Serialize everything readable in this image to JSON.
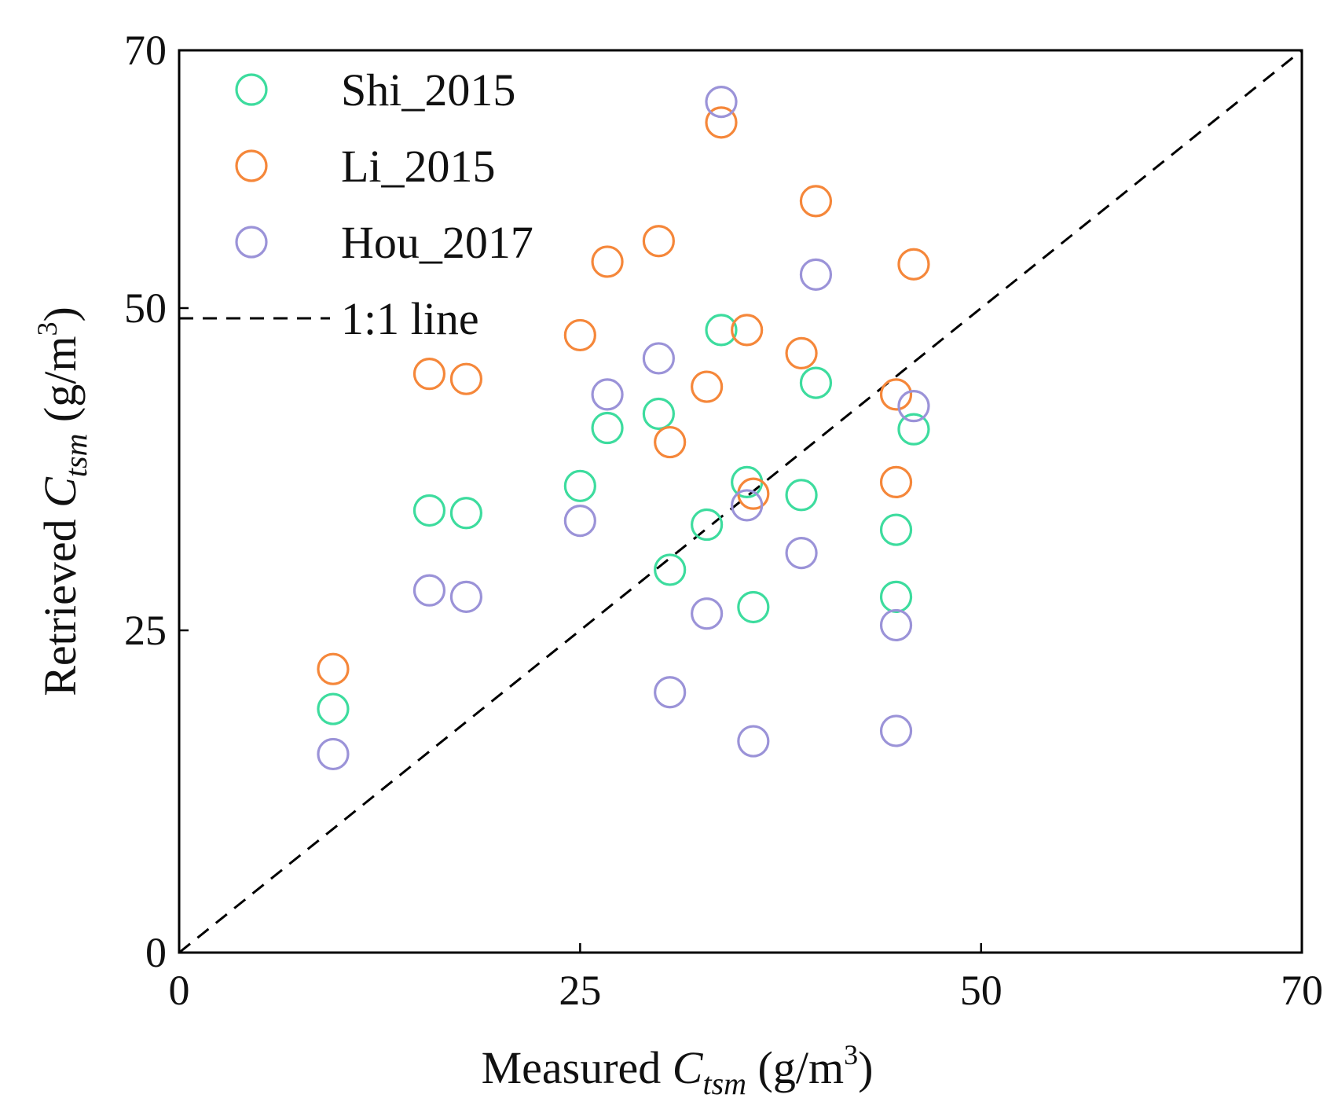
{
  "chart_data": {
    "type": "scatter",
    "title": "",
    "xlabel": {
      "prefix": "Measured ",
      "var": "C",
      "sub": "tsm",
      "unit_open": " (g/m",
      "unit_sup": "3",
      "unit_close": ")"
    },
    "ylabel": {
      "prefix": "Retrieved ",
      "var": "C",
      "sub": "tsm",
      "unit_open": " (g/m",
      "unit_sup": "3",
      "unit_close": ")"
    },
    "xlim": [
      0,
      70
    ],
    "ylim": [
      0,
      70
    ],
    "xticks": [
      0,
      25,
      50,
      70
    ],
    "yticks": [
      0,
      25,
      50,
      70
    ],
    "grid": false,
    "legend_position": "top-left",
    "series": [
      {
        "name": "Shi_2015",
        "color": "#3ddc9e",
        "x": [
          9.6,
          15.6,
          17.9,
          25.0,
          26.7,
          29.9,
          30.6,
          32.9,
          33.8,
          35.4,
          35.8,
          38.8,
          39.7,
          44.7,
          44.7,
          45.8
        ],
        "y": [
          18.9,
          34.3,
          34.1,
          36.2,
          40.7,
          41.8,
          29.7,
          33.2,
          48.3,
          36.5,
          26.8,
          35.5,
          44.2,
          32.8,
          27.6,
          40.6
        ]
      },
      {
        "name": "Li_2015",
        "color": "#f5873a",
        "x": [
          9.6,
          15.6,
          17.9,
          25.0,
          26.7,
          29.9,
          30.6,
          32.9,
          33.8,
          35.4,
          35.8,
          38.8,
          39.7,
          44.7,
          44.7,
          45.8
        ],
        "y": [
          22.0,
          44.9,
          44.5,
          47.9,
          53.6,
          55.2,
          39.6,
          43.9,
          64.4,
          48.3,
          35.6,
          46.5,
          58.3,
          43.3,
          36.5,
          53.4
        ]
      },
      {
        "name": "Hou_2017",
        "color": "#9b93d8",
        "x": [
          9.6,
          15.6,
          17.9,
          25.0,
          26.7,
          29.9,
          30.6,
          32.9,
          33.8,
          35.4,
          35.8,
          38.8,
          39.7,
          44.7,
          44.7,
          45.8
        ],
        "y": [
          15.4,
          28.1,
          27.6,
          33.5,
          43.3,
          46.1,
          20.2,
          26.3,
          66.0,
          34.7,
          16.4,
          31.0,
          52.6,
          25.4,
          17.2,
          42.4
        ]
      }
    ],
    "reference_line": {
      "name": "1:1 line",
      "x": [
        0,
        70
      ],
      "y": [
        0,
        70
      ]
    }
  }
}
